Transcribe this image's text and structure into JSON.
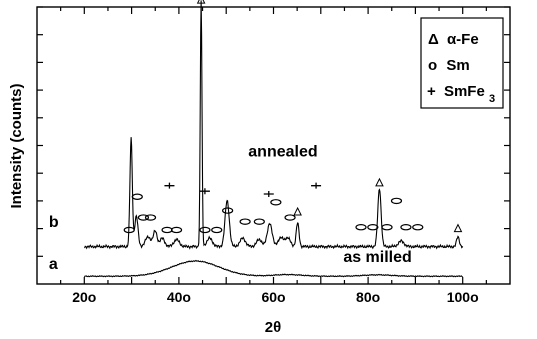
{
  "chart_data": {
    "type": "line",
    "xlabel": "2θ",
    "ylabel": "Intensity  (counts)",
    "xlim": [
      10,
      110
    ],
    "ylim": [
      0,
      10
    ],
    "grid": false,
    "x_ticks": [
      {
        "value": 20,
        "label": "20o"
      },
      {
        "value": 40,
        "label": "40o"
      },
      {
        "value": 60,
        "label": "60o"
      },
      {
        "value": 80,
        "label": "80o"
      },
      {
        "value": 100,
        "label": "100o"
      }
    ],
    "series": [
      {
        "name": "as milled",
        "tag": "a",
        "baseline": 0.28,
        "peaks": [
          {
            "x": 43.5,
            "height": 0.55,
            "width": 5.0
          },
          {
            "x": 63,
            "height": 0.06,
            "width": 3.0
          },
          {
            "x": 82,
            "height": 0.05,
            "width": 3.0
          }
        ]
      },
      {
        "name": "annealed",
        "tag": "b",
        "baseline": 1.35,
        "peaks": [
          {
            "x": 29.9,
            "height": 3.9,
            "width": 0.25
          },
          {
            "x": 31.0,
            "height": 1.1,
            "width": 0.35
          },
          {
            "x": 33.5,
            "height": 0.35,
            "width": 0.6
          },
          {
            "x": 35.0,
            "height": 0.55,
            "width": 0.4
          },
          {
            "x": 36.5,
            "height": 0.3,
            "width": 0.5
          },
          {
            "x": 39.5,
            "height": 0.25,
            "width": 0.6
          },
          {
            "x": 44.7,
            "height": 8.9,
            "width": 0.18
          },
          {
            "x": 46.5,
            "height": 0.3,
            "width": 0.6
          },
          {
            "x": 50.2,
            "height": 1.65,
            "width": 0.45
          },
          {
            "x": 53.5,
            "height": 0.3,
            "width": 0.6
          },
          {
            "x": 57.0,
            "height": 0.25,
            "width": 0.6
          },
          {
            "x": 59.2,
            "height": 0.85,
            "width": 0.5
          },
          {
            "x": 61.5,
            "height": 0.3,
            "width": 0.6
          },
          {
            "x": 63.0,
            "height": 0.3,
            "width": 0.6
          },
          {
            "x": 65.1,
            "height": 0.85,
            "width": 0.3
          },
          {
            "x": 82.4,
            "height": 2.1,
            "width": 0.35
          },
          {
            "x": 87.0,
            "height": 0.2,
            "width": 0.6
          },
          {
            "x": 99.0,
            "height": 0.35,
            "width": 0.3
          }
        ]
      }
    ],
    "annotations": [
      {
        "text": "annealed",
        "x": 62,
        "y": 4.6
      },
      {
        "text": "as milled",
        "x": 82,
        "y": 0.8
      }
    ],
    "markers": {
      "alpha_fe": [
        {
          "x": 44.7,
          "y": 10.25
        },
        {
          "x": 65.1,
          "y": 2.6
        },
        {
          "x": 82.4,
          "y": 3.65
        },
        {
          "x": 99.0,
          "y": 2.0
        }
      ],
      "sm": [
        {
          "x": 29.5,
          "y": 1.95
        },
        {
          "x": 31.2,
          "y": 3.15
        },
        {
          "x": 32.5,
          "y": 2.4
        },
        {
          "x": 34.0,
          "y": 2.4
        },
        {
          "x": 37.5,
          "y": 1.95
        },
        {
          "x": 39.5,
          "y": 1.95
        },
        {
          "x": 45.5,
          "y": 1.95
        },
        {
          "x": 48.0,
          "y": 1.95
        },
        {
          "x": 50.3,
          "y": 2.65
        },
        {
          "x": 54.0,
          "y": 2.25
        },
        {
          "x": 57.0,
          "y": 2.25
        },
        {
          "x": 60.5,
          "y": 2.95
        },
        {
          "x": 63.5,
          "y": 2.4
        },
        {
          "x": 78.5,
          "y": 2.05
        },
        {
          "x": 81.0,
          "y": 2.05
        },
        {
          "x": 84.0,
          "y": 2.05
        },
        {
          "x": 86.0,
          "y": 3.0
        },
        {
          "x": 88.0,
          "y": 2.05
        },
        {
          "x": 90.5,
          "y": 2.05
        }
      ],
      "smfe3": [
        {
          "x": 38.0,
          "y": 3.55
        },
        {
          "x": 45.5,
          "y": 3.35
        },
        {
          "x": 59.0,
          "y": 3.25
        },
        {
          "x": 69.0,
          "y": 3.55
        }
      ]
    },
    "legend": {
      "placement": "top-right",
      "entries": [
        {
          "symbol": "Δ",
          "text": "α-Fe"
        },
        {
          "symbol": "o",
          "text": "Sm"
        },
        {
          "symbol": "+",
          "text": "SmFe",
          "subscript": "3"
        }
      ]
    }
  }
}
